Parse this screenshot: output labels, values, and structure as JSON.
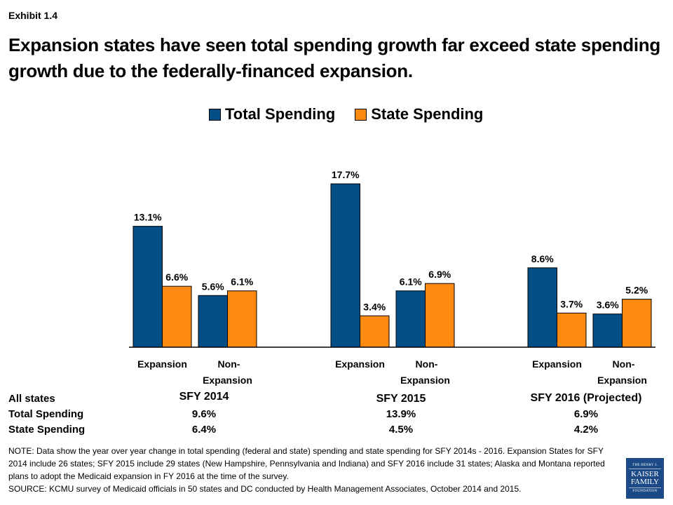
{
  "exhibit_label": "Exhibit 1.4",
  "title": "Expansion states have seen total spending growth far exceed state spending growth due to the federally-financed expansion.",
  "chart_data": {
    "type": "bar",
    "title": "Expansion states have seen total spending growth far exceed state spending growth due to the federally-financed expansion.",
    "xlabel": "",
    "ylabel": "",
    "ylim": [
      0,
      18
    ],
    "grid": false,
    "legend_position": "top-center",
    "groups": [
      "SFY 2014",
      "SFY 2015",
      "SFY 2016 (Projected)"
    ],
    "categories": [
      "Expansion",
      "Non-Expansion"
    ],
    "category_labels": [
      [
        "Expansion",
        ""
      ],
      [
        "Non-",
        "Expansion"
      ]
    ],
    "series": [
      {
        "name": "Total Spending",
        "color": "#034e87",
        "values": [
          [
            13.1,
            5.6
          ],
          [
            17.7,
            6.1
          ],
          [
            8.6,
            3.6
          ]
        ]
      },
      {
        "name": "State Spending",
        "color": "#fe8a11",
        "values": [
          [
            6.6,
            6.1
          ],
          [
            3.4,
            6.9
          ],
          [
            3.7,
            5.2
          ]
        ]
      }
    ],
    "data_labels": [
      [
        [
          "13.1%",
          "5.6%"
        ],
        [
          "17.7%",
          "6.1%"
        ],
        [
          "8.6%",
          "3.6%"
        ]
      ],
      [
        [
          "6.6%",
          "6.1%"
        ],
        [
          "3.4%",
          "6.9%"
        ],
        [
          "3.7%",
          "5.2%"
        ]
      ]
    ]
  },
  "legend": [
    {
      "label": "Total Spending",
      "color": "#034e87"
    },
    {
      "label": "State Spending",
      "color": "#fe8a11"
    }
  ],
  "summary_table": {
    "row_headers": [
      "All states",
      "Total Spending",
      "State Spending"
    ],
    "columns": [
      {
        "header": "SFY 2014",
        "total": "9.6%",
        "state": "6.4%"
      },
      {
        "header": "SFY 2015",
        "total": "13.9%",
        "state": "4.5%"
      },
      {
        "header": "SFY 2016 (Projected)",
        "total": "6.9%",
        "state": "4.2%"
      }
    ]
  },
  "notes": {
    "note": "NOTE: Data show the year over year change in total spending (federal and state) spending and state spending for SFY 2014s - 2016. Expansion States for SFY 2014 include 26 states; SFY 2015 include 29 states (New Hampshire, Pennsylvania and Indiana) and  SFY 2016 include 31 states; Alaska and Montana reported plans to adopt the Medicaid expansion in FY 2016 at the time of the survey.",
    "source": "SOURCE: KCMU survey of Medicaid officials in 50 states and DC conducted by Health Management Associates, October 2014 and 2015."
  },
  "logo": {
    "line1": "THE HENRY J.",
    "line2": "KAISER",
    "line3": "FAMILY",
    "line4": "FOUNDATION"
  }
}
